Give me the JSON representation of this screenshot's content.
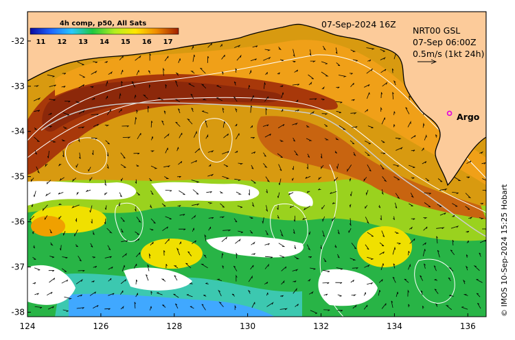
{
  "map": {
    "title": "4h comp, p50, All Sats",
    "date_label": "07-Sep-2024 16Z",
    "current_source": "NRT00 GSL",
    "current_time": "07-Sep 06:00Z",
    "current_scale": "0.5m/s (1kt 24h)",
    "argo_label": "Argo",
    "credit": "© IMOS 10-Sep-2024 15:25 Hobart",
    "colorbar": {
      "ticks": [
        "11",
        "12",
        "13",
        "14",
        "15",
        "16",
        "17"
      ],
      "range_degC": [
        10.5,
        17.5
      ]
    },
    "axes": {
      "lon_ticks": [
        "124",
        "126",
        "128",
        "130",
        "132",
        "134",
        "136"
      ],
      "lat_ticks": [
        "-32",
        "-33",
        "-34",
        "-35",
        "-36",
        "-37",
        "-38"
      ],
      "lon_range": [
        124,
        136.5
      ],
      "lat_range": [
        -38.1,
        -31.35
      ]
    },
    "colors": {
      "land": "#fccb9a",
      "coast": "#000000",
      "contour": "#ffffff",
      "argo": "#e000e0"
    },
    "argo_position": {
      "lon": 135.5,
      "lat": -33.6
    }
  }
}
